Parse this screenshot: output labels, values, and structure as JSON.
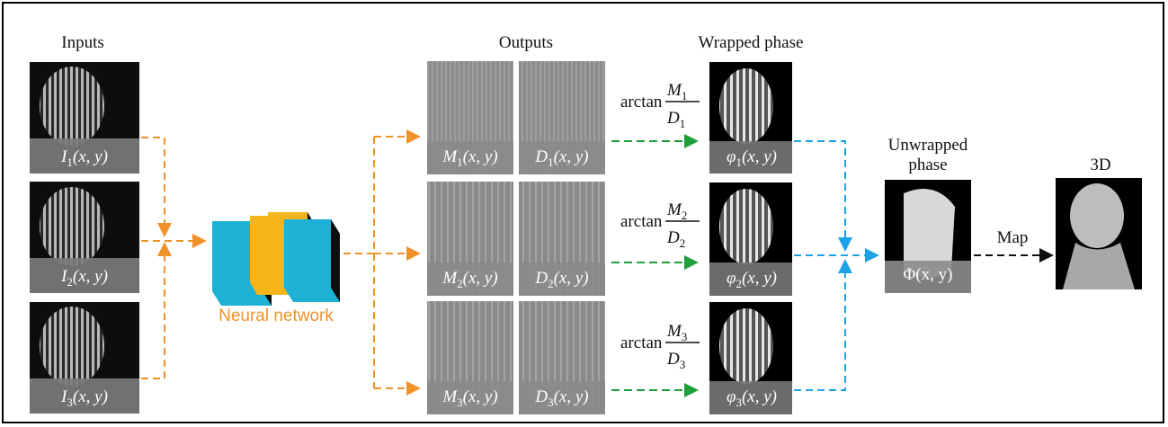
{
  "headers": {
    "inputs": "Inputs",
    "outputs": "Outputs",
    "wrapped": "Wrapped phase",
    "unwrapped_1": "Unwrapped",
    "unwrapped_2": "phase",
    "threed": "3D"
  },
  "inputs": [
    {
      "sym": "I",
      "sub": "1",
      "args": "(x, y)"
    },
    {
      "sym": "I",
      "sub": "2",
      "args": "(x, y)"
    },
    {
      "sym": "I",
      "sub": "3",
      "args": "(x, y)"
    }
  ],
  "network_label": "Neural network",
  "outputs": [
    {
      "m_sym": "M",
      "m_sub": "1",
      "d_sym": "D",
      "d_sub": "1",
      "args": "(x, y)"
    },
    {
      "m_sym": "M",
      "m_sub": "2",
      "d_sym": "D",
      "d_sub": "2",
      "args": "(x, y)"
    },
    {
      "m_sym": "M",
      "m_sub": "3",
      "d_sym": "D",
      "d_sub": "3",
      "args": "(x, y)"
    }
  ],
  "arctan": {
    "word": "arctan",
    "nums": [
      "M",
      "M",
      "M"
    ],
    "dens": [
      "D",
      "D",
      "D"
    ],
    "subs": [
      "1",
      "2",
      "3"
    ]
  },
  "wrapped": [
    {
      "sym": "φ",
      "sub": "1",
      "args": "(x, y)"
    },
    {
      "sym": "φ",
      "sub": "2",
      "args": "(x, y)"
    },
    {
      "sym": "φ",
      "sub": "3",
      "args": "(x, y)"
    }
  ],
  "unwrapped_label": "Φ(x, y)",
  "map_label": "Map",
  "colors": {
    "orange": "#f0922a",
    "green": "#1f9e3c",
    "blue": "#1ea3e8",
    "black": "#111111",
    "cyan_block": "#1db1d6",
    "yellow_block": "#f5b41a"
  }
}
